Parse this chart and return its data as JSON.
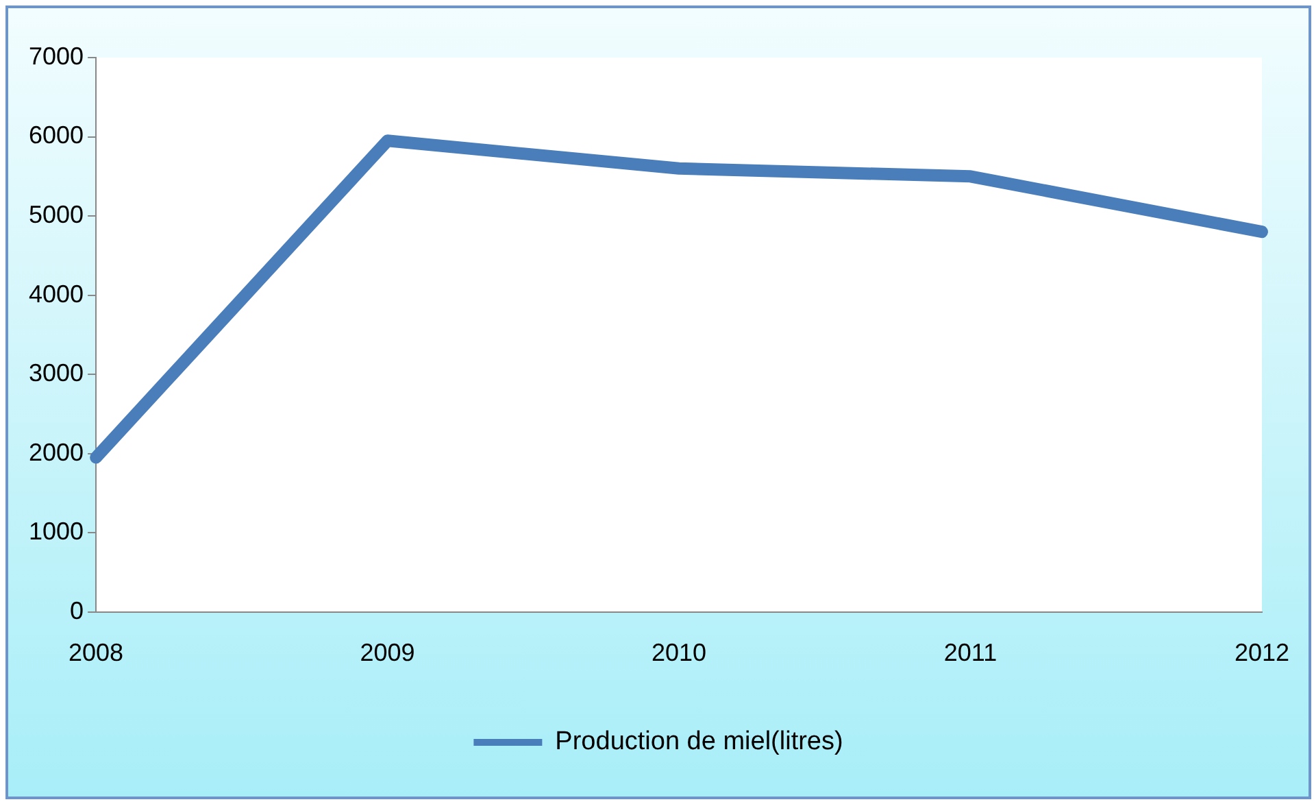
{
  "chart_data": {
    "type": "line",
    "categories": [
      "2008",
      "2009",
      "2010",
      "2011",
      "2012"
    ],
    "series": [
      {
        "name": "Production de miel(litres)",
        "color": "#4a7ebb",
        "values": [
          1950,
          5950,
          5600,
          5500,
          4800
        ]
      }
    ],
    "ylim": [
      0,
      7000
    ],
    "yticks": [
      0,
      1000,
      2000,
      3000,
      4000,
      5000,
      6000,
      7000
    ],
    "grid": false,
    "legend": "bottom",
    "marker": "none",
    "line_style": "solid"
  }
}
